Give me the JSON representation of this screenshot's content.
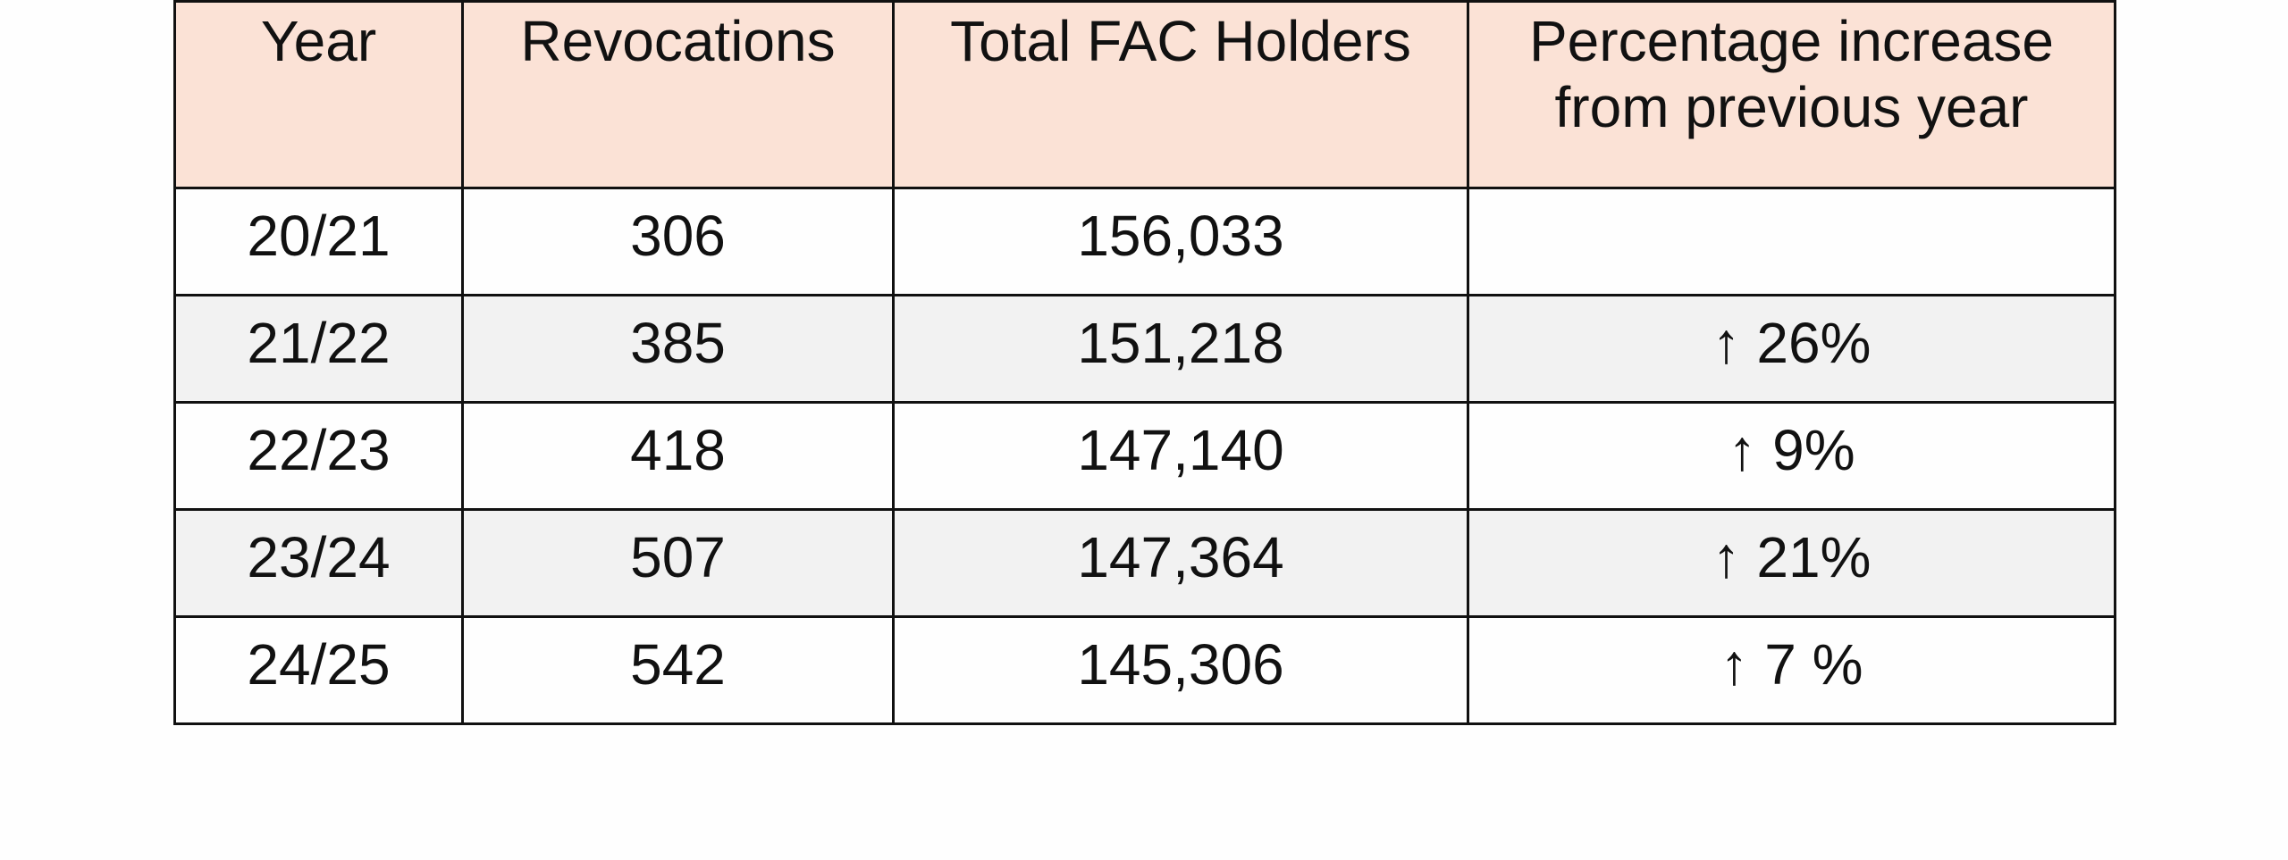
{
  "table": {
    "header": [
      "Year",
      "Revocations",
      "Total FAC Holders",
      "Percentage increase from previous year"
    ],
    "rows": [
      [
        "20/21",
        "306",
        "156,033"
      ],
      [
        "21/22",
        "385",
        "151,218",
        "↑ 26%"
      ],
      [
        "22/23",
        "418",
        "147,140",
        "↑ 9%"
      ],
      [
        "23/24",
        "507",
        "147,364",
        "↑ 21%"
      ],
      [
        "24/25",
        "542",
        "145,306",
        "↑ 7 %"
      ]
    ]
  }
}
